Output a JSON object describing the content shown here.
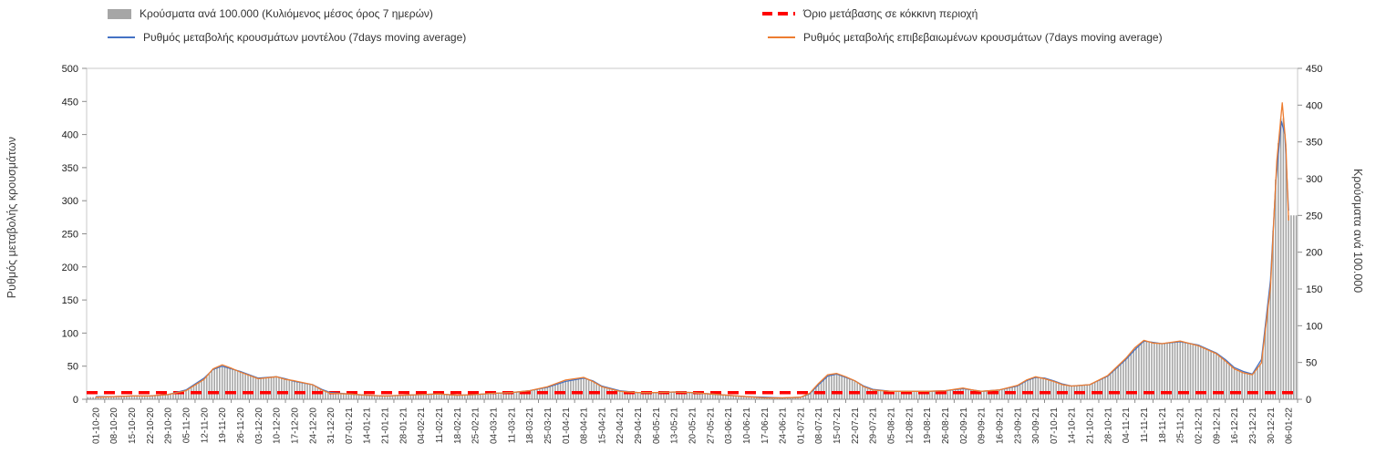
{
  "chart_data": {
    "type": "combo",
    "title": "",
    "legend": [
      {
        "label": "Κρούσματα ανά 100.000 (Κυλιόμενος μέσος όρος 7 ημερών)",
        "type": "bar",
        "color": "#a6a6a6"
      },
      {
        "label": "Όριο μετάβασης σε κόκκινη περιοχή",
        "type": "dashed-line",
        "color": "#ff0000"
      },
      {
        "label": "Ρυθμός μεταβολής κρουσμάτων μοντέλου (7days moving average)",
        "type": "line",
        "color": "#4472c4"
      },
      {
        "label": "Ρυθμός μεταβολής επιβεβαιωμένων κρουσμάτων (7days moving average)",
        "type": "line",
        "color": "#ed7d31"
      }
    ],
    "y_left": {
      "label": "Ρυθμός μεταβολής κρουσμάτων",
      "min": 0,
      "max": 500,
      "step": 50
    },
    "y_right": {
      "label": "Κρούσματα ανά 100.000",
      "min": 0,
      "max": 450,
      "step": 50
    },
    "threshold": {
      "value": 10,
      "axis": "left"
    },
    "grid": false,
    "legend_position": "top",
    "categories": [
      "01-10-20",
      "08-10-20",
      "15-10-20",
      "22-10-20",
      "29-10-20",
      "05-11-20",
      "12-11-20",
      "19-11-20",
      "26-11-20",
      "03-12-20",
      "10-12-20",
      "17-12-20",
      "24-12-20",
      "31-12-20",
      "07-01-21",
      "14-01-21",
      "21-01-21",
      "28-01-21",
      "04-02-21",
      "11-02-21",
      "18-02-21",
      "25-02-21",
      "04-03-21",
      "11-03-21",
      "18-03-21",
      "25-03-21",
      "01-04-21",
      "08-04-21",
      "15-04-21",
      "22-04-21",
      "29-04-21",
      "06-05-21",
      "13-05-21",
      "20-05-21",
      "27-05-21",
      "03-06-21",
      "10-06-21",
      "17-06-21",
      "24-06-21",
      "01-07-21",
      "08-07-21",
      "15-07-21",
      "22-07-21",
      "29-07-21",
      "05-08-21",
      "12-08-21",
      "19-08-21",
      "26-08-21",
      "02-09-21",
      "09-09-21",
      "16-09-21",
      "23-09-21",
      "30-09-21",
      "07-10-21",
      "14-10-21",
      "21-10-21",
      "28-10-21",
      "04-11-21",
      "11-11-21",
      "18-11-21",
      "25-11-21",
      "02-12-21",
      "09-12-21",
      "16-12-21",
      "23-12-21",
      "30-12-21",
      "06-01-22"
    ],
    "series": [
      {
        "name": "cases_per_100k",
        "axis": "right",
        "type": "bar",
        "points": [
          [
            0,
            3
          ],
          [
            1,
            4
          ],
          [
            2,
            4
          ],
          [
            3,
            4
          ],
          [
            4,
            6
          ],
          [
            5,
            12
          ],
          [
            6,
            27
          ],
          [
            6.5,
            40
          ],
          [
            7,
            45
          ],
          [
            7.5,
            42
          ],
          [
            8,
            37
          ],
          [
            9,
            28
          ],
          [
            10,
            30
          ],
          [
            11,
            25
          ],
          [
            12,
            19
          ],
          [
            12.5,
            13
          ],
          [
            13,
            9
          ],
          [
            14,
            7
          ],
          [
            15,
            5
          ],
          [
            16,
            4
          ],
          [
            17,
            5
          ],
          [
            18,
            6
          ],
          [
            19,
            7
          ],
          [
            20,
            5
          ],
          [
            21,
            6
          ],
          [
            22,
            8
          ],
          [
            23,
            9
          ],
          [
            24,
            11
          ],
          [
            25,
            16
          ],
          [
            26,
            25
          ],
          [
            27,
            29
          ],
          [
            27.5,
            24
          ],
          [
            28,
            17
          ],
          [
            29,
            11
          ],
          [
            30,
            9
          ],
          [
            31,
            9
          ],
          [
            32,
            10
          ],
          [
            33,
            9
          ],
          [
            34,
            7
          ],
          [
            35,
            5
          ],
          [
            36,
            3
          ],
          [
            37,
            2
          ],
          [
            38,
            2
          ],
          [
            39,
            3
          ],
          [
            39.5,
            8
          ],
          [
            40,
            20
          ],
          [
            40.5,
            32
          ],
          [
            41,
            35
          ],
          [
            41.5,
            30
          ],
          [
            42,
            25
          ],
          [
            42.5,
            17
          ],
          [
            43,
            13
          ],
          [
            44,
            11
          ],
          [
            45,
            11
          ],
          [
            46,
            11
          ],
          [
            47,
            12
          ],
          [
            48,
            15
          ],
          [
            48.5,
            13
          ],
          [
            49,
            11
          ],
          [
            50,
            13
          ],
          [
            51,
            18
          ],
          [
            51.5,
            26
          ],
          [
            52,
            30
          ],
          [
            52.5,
            28
          ],
          [
            53,
            25
          ],
          [
            53.5,
            20
          ],
          [
            54,
            18
          ],
          [
            55,
            20
          ],
          [
            56,
            32
          ],
          [
            57,
            55
          ],
          [
            57.5,
            70
          ],
          [
            58,
            80
          ],
          [
            58.5,
            78
          ],
          [
            59,
            76
          ],
          [
            60,
            79
          ],
          [
            61,
            73
          ],
          [
            62,
            62
          ],
          [
            62.5,
            53
          ],
          [
            63,
            41
          ],
          [
            63.5,
            37
          ],
          [
            64,
            34
          ],
          [
            64.5,
            50
          ],
          [
            65,
            160
          ],
          [
            65.35,
            330
          ],
          [
            65.65,
            400
          ],
          [
            65.85,
            345
          ],
          [
            66,
            250
          ]
        ]
      },
      {
        "name": "model_rate",
        "axis": "left",
        "type": "line",
        "points": [
          [
            0,
            4
          ],
          [
            1,
            4
          ],
          [
            2,
            5
          ],
          [
            3,
            5
          ],
          [
            4,
            7
          ],
          [
            5,
            14
          ],
          [
            6,
            32
          ],
          [
            6.5,
            45
          ],
          [
            7,
            50
          ],
          [
            7.5,
            46
          ],
          [
            8,
            42
          ],
          [
            9,
            32
          ],
          [
            10,
            34
          ],
          [
            10.5,
            31
          ],
          [
            11,
            27
          ],
          [
            12,
            22
          ],
          [
            12.5,
            15
          ],
          [
            13,
            10
          ],
          [
            14,
            8
          ],
          [
            15,
            6
          ],
          [
            16,
            5
          ],
          [
            17,
            6
          ],
          [
            18,
            7
          ],
          [
            19,
            8
          ],
          [
            20,
            6
          ],
          [
            21,
            7
          ],
          [
            22,
            9
          ],
          [
            23,
            10
          ],
          [
            24,
            13
          ],
          [
            25,
            18
          ],
          [
            26,
            27
          ],
          [
            27,
            32
          ],
          [
            27.5,
            28
          ],
          [
            28,
            20
          ],
          [
            29,
            13
          ],
          [
            30,
            10
          ],
          [
            31,
            10
          ],
          [
            32,
            11
          ],
          [
            33,
            10
          ],
          [
            34,
            8
          ],
          [
            35,
            6
          ],
          [
            36,
            4
          ],
          [
            37,
            3
          ],
          [
            38,
            2
          ],
          [
            39,
            3
          ],
          [
            39.5,
            8
          ],
          [
            40,
            22
          ],
          [
            40.5,
            35
          ],
          [
            41,
            38
          ],
          [
            41.5,
            33
          ],
          [
            42,
            28
          ],
          [
            42.5,
            20
          ],
          [
            43,
            15
          ],
          [
            44,
            12
          ],
          [
            45,
            12
          ],
          [
            46,
            12
          ],
          [
            47,
            13
          ],
          [
            48,
            16
          ],
          [
            48.5,
            14
          ],
          [
            49,
            12
          ],
          [
            50,
            14
          ],
          [
            51,
            20
          ],
          [
            51.5,
            28
          ],
          [
            52,
            33
          ],
          [
            52.5,
            32
          ],
          [
            53,
            28
          ],
          [
            53.5,
            23
          ],
          [
            54,
            20
          ],
          [
            55,
            22
          ],
          [
            56,
            35
          ],
          [
            57,
            60
          ],
          [
            57.5,
            75
          ],
          [
            58,
            88
          ],
          [
            58.5,
            86
          ],
          [
            59,
            84
          ],
          [
            60,
            87
          ],
          [
            61,
            82
          ],
          [
            62,
            70
          ],
          [
            62.5,
            60
          ],
          [
            63,
            48
          ],
          [
            63.5,
            42
          ],
          [
            64,
            38
          ],
          [
            64.5,
            60
          ],
          [
            65,
            180
          ],
          [
            65.3,
            330
          ],
          [
            65.6,
            420
          ],
          [
            65.8,
            400
          ],
          [
            66,
            285
          ]
        ]
      },
      {
        "name": "confirmed_rate",
        "axis": "left",
        "type": "line",
        "points": [
          [
            0,
            3
          ],
          [
            1,
            4
          ],
          [
            2,
            5
          ],
          [
            3,
            5
          ],
          [
            4,
            7
          ],
          [
            5,
            13
          ],
          [
            6,
            30
          ],
          [
            6.5,
            46
          ],
          [
            7,
            52
          ],
          [
            7.5,
            47
          ],
          [
            8,
            41
          ],
          [
            9,
            31
          ],
          [
            10,
            34
          ],
          [
            10.5,
            30
          ],
          [
            11,
            28
          ],
          [
            12,
            22
          ],
          [
            12.5,
            14
          ],
          [
            13,
            9
          ],
          [
            14,
            8
          ],
          [
            15,
            6
          ],
          [
            16,
            5
          ],
          [
            17,
            6
          ],
          [
            18,
            7
          ],
          [
            19,
            8
          ],
          [
            20,
            6
          ],
          [
            21,
            7
          ],
          [
            22,
            9
          ],
          [
            23,
            10
          ],
          [
            24,
            13
          ],
          [
            25,
            19
          ],
          [
            26,
            29
          ],
          [
            27,
            33
          ],
          [
            27.5,
            27
          ],
          [
            28,
            19
          ],
          [
            29,
            12
          ],
          [
            30,
            10
          ],
          [
            31,
            10
          ],
          [
            32,
            11
          ],
          [
            33,
            10
          ],
          [
            34,
            8
          ],
          [
            35,
            6
          ],
          [
            36,
            4
          ],
          [
            37,
            2
          ],
          [
            38,
            2
          ],
          [
            39,
            3
          ],
          [
            39.5,
            9
          ],
          [
            40,
            24
          ],
          [
            40.5,
            37
          ],
          [
            41,
            39
          ],
          [
            41.5,
            34
          ],
          [
            42,
            28
          ],
          [
            42.5,
            19
          ],
          [
            43,
            14
          ],
          [
            44,
            12
          ],
          [
            45,
            12
          ],
          [
            46,
            12
          ],
          [
            47,
            13
          ],
          [
            48,
            17
          ],
          [
            48.5,
            14
          ],
          [
            49,
            12
          ],
          [
            50,
            14
          ],
          [
            51,
            21
          ],
          [
            51.5,
            29
          ],
          [
            52,
            34
          ],
          [
            52.5,
            31
          ],
          [
            53,
            27
          ],
          [
            53.5,
            22
          ],
          [
            54,
            20
          ],
          [
            55,
            22
          ],
          [
            56,
            36
          ],
          [
            57,
            62
          ],
          [
            57.5,
            78
          ],
          [
            58,
            89
          ],
          [
            58.5,
            85
          ],
          [
            59,
            84
          ],
          [
            60,
            88
          ],
          [
            61,
            81
          ],
          [
            62,
            69
          ],
          [
            62.5,
            58
          ],
          [
            63,
            46
          ],
          [
            63.5,
            40
          ],
          [
            64,
            37
          ],
          [
            64.5,
            55
          ],
          [
            65,
            170
          ],
          [
            65.35,
            360
          ],
          [
            65.65,
            448
          ],
          [
            65.85,
            385
          ],
          [
            66,
            270
          ]
        ]
      }
    ]
  }
}
